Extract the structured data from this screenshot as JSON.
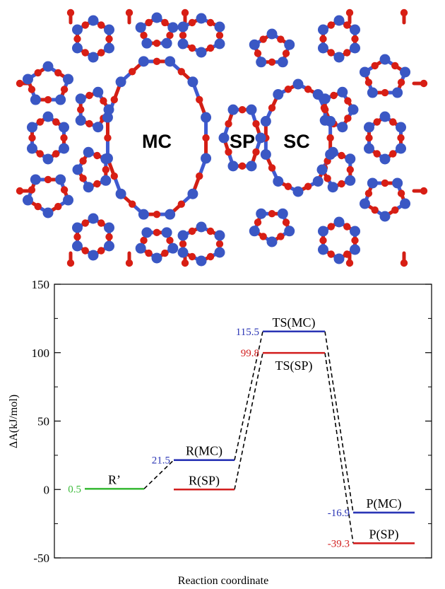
{
  "structure_panel": {
    "labels": [
      "MC",
      "SP",
      "SC"
    ],
    "colors": {
      "atom_t": "#3a57c4",
      "atom_o": "#d81e14",
      "bond_t": "#3f5ad0",
      "bond_o": "#d21e14"
    }
  },
  "chart_data": {
    "type": "energy_profile",
    "title": "",
    "xlabel": "Reaction coordinate",
    "ylabel": "ΔA(kJ/mol)",
    "ylim": [
      -50,
      150
    ],
    "yticks": [
      -50,
      0,
      50,
      100,
      150
    ],
    "grid": false,
    "legend": "none",
    "states": [
      {
        "name": "R’",
        "value": 0.5,
        "value_label": "0.5",
        "stage": 0,
        "pathway": "common",
        "color": "#3dbb3b"
      },
      {
        "name": "R(MC)",
        "value": 21.5,
        "value_label": "21.5",
        "stage": 1,
        "pathway": "MC",
        "color": "#2a35b5"
      },
      {
        "name": "R(SP)",
        "value": 0,
        "value_label": "",
        "stage": 1,
        "pathway": "SP",
        "color": "#d21e1e"
      },
      {
        "name": "TS(MC)",
        "value": 115.5,
        "value_label": "115.5",
        "stage": 2,
        "pathway": "MC",
        "color": "#2a35b5"
      },
      {
        "name": "TS(SP)",
        "value": 99.8,
        "value_label": "99.8",
        "stage": 2,
        "pathway": "SP",
        "color": "#d21e1e"
      },
      {
        "name": "P(MC)",
        "value": -16.9,
        "value_label": "-16.9",
        "stage": 3,
        "pathway": "MC",
        "color": "#2a35b5"
      },
      {
        "name": "P(SP)",
        "value": -39.3,
        "value_label": "-39.3",
        "stage": 3,
        "pathway": "SP",
        "color": "#d21e1e"
      }
    ],
    "connections": [
      [
        "R’",
        "R(MC)"
      ],
      [
        "R(MC)",
        "TS(MC)"
      ],
      [
        "R(SP)",
        "TS(SP)"
      ],
      [
        "TS(MC)",
        "P(MC)"
      ],
      [
        "TS(SP)",
        "P(SP)"
      ]
    ]
  }
}
